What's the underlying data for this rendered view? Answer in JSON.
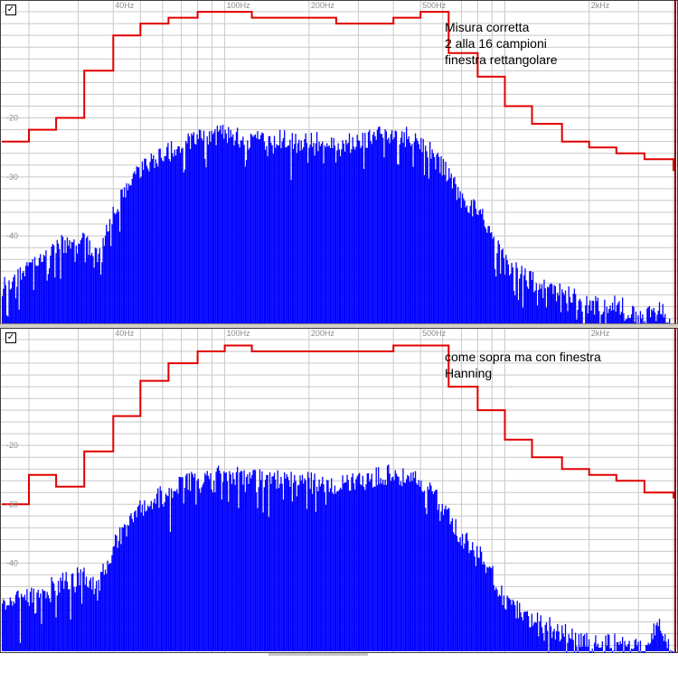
{
  "chart_data": [
    {
      "type": "bar",
      "subtype": "spectrum-with-octave-band-envelope",
      "x_scale": "log",
      "xlim_hz": [
        16,
        4000
      ],
      "ylim_db": [
        -55,
        0
      ],
      "grid": true,
      "x_tick_labels": [
        "40Hz",
        "100Hz",
        "200Hz",
        "500Hz",
        "2kHz"
      ],
      "x_tick_values": [
        40,
        100,
        200,
        500,
        2000
      ],
      "y_tick_labels": [
        "-20",
        "-30",
        "-40"
      ],
      "y_tick_values": [
        -20,
        -30,
        -40
      ],
      "annotation": [
        "Misura corretta",
        "2 alla 16 campioni",
        "finestra rettangolare"
      ],
      "band_envelope_hz": [
        16,
        20,
        25,
        31.5,
        40,
        50,
        63,
        80,
        100,
        125,
        160,
        200,
        250,
        315,
        400,
        500,
        630,
        800,
        1000,
        1250,
        1600,
        2000,
        2500,
        3150,
        4000
      ],
      "band_envelope_db": [
        -24,
        -22,
        -20,
        -12,
        -6,
        -4,
        -3,
        -2,
        -2,
        -3,
        -3,
        -3,
        -4,
        -4,
        -3,
        -2,
        -9,
        -13,
        -18,
        -21,
        -24,
        -25,
        -26,
        -27,
        -29
      ],
      "spectrum_envelope_hz": [
        16,
        20,
        25,
        31.5,
        35,
        40,
        50,
        63,
        80,
        100,
        125,
        160,
        200,
        250,
        315,
        400,
        500,
        630,
        700,
        800,
        900,
        1000,
        1250,
        1600,
        2000,
        2500,
        3150,
        3600,
        4000
      ],
      "spectrum_envelope_db": [
        -47,
        -43,
        -40,
        -39,
        -42,
        -34,
        -27,
        -24,
        -22,
        -21,
        -22,
        -22,
        -22,
        -23,
        -22,
        -21,
        -22,
        -28,
        -32,
        -34,
        -38,
        -43,
        -46,
        -48,
        -50,
        -50,
        -52,
        -51,
        -54
      ]
    },
    {
      "type": "bar",
      "subtype": "spectrum-with-octave-band-envelope",
      "x_scale": "log",
      "xlim_hz": [
        16,
        4000
      ],
      "ylim_db": [
        -55,
        0
      ],
      "grid": true,
      "x_tick_labels": [
        "40Hz",
        "100Hz",
        "200Hz",
        "500Hz",
        "2kHz"
      ],
      "x_tick_values": [
        40,
        100,
        200,
        500,
        2000
      ],
      "y_tick_labels": [
        "-20",
        "-30",
        "-40"
      ],
      "y_tick_values": [
        -20,
        -30,
        -40
      ],
      "annotation": [
        "come sopra ma con finestra",
        "Hanning"
      ],
      "band_envelope_hz": [
        16,
        20,
        25,
        31.5,
        40,
        50,
        63,
        80,
        100,
        125,
        160,
        200,
        250,
        315,
        400,
        500,
        630,
        800,
        1000,
        1250,
        1600,
        2000,
        2500,
        3150,
        4000
      ],
      "band_envelope_db": [
        -30,
        -25,
        -27,
        -21,
        -15,
        -9,
        -6,
        -4,
        -3,
        -4,
        -4,
        -4,
        -4,
        -4,
        -3,
        -3,
        -10,
        -14,
        -19,
        -22,
        -24,
        -25,
        -26,
        -28,
        -29
      ],
      "spectrum_envelope_hz": [
        16,
        20,
        25,
        31.5,
        35,
        40,
        50,
        63,
        80,
        100,
        125,
        160,
        200,
        250,
        315,
        400,
        500,
        630,
        700,
        800,
        900,
        1000,
        1250,
        1600,
        2000,
        2500,
        3150,
        3600,
        4000
      ],
      "spectrum_envelope_db": [
        -45,
        -44,
        -42,
        -40,
        -43,
        -35,
        -29,
        -26,
        -24,
        -23,
        -24,
        -24,
        -24,
        -25,
        -24,
        -23,
        -24,
        -30,
        -34,
        -36,
        -40,
        -45,
        -48,
        -50,
        -52,
        -52,
        -53,
        -48,
        -55
      ]
    }
  ],
  "colors": {
    "bars": "#0000ff",
    "envelope": "#e00000",
    "grid": "#c8c8c8",
    "background": "#ffffff",
    "axis_label": "#8c8c8c"
  },
  "icons": [
    "checkbox-icon"
  ]
}
